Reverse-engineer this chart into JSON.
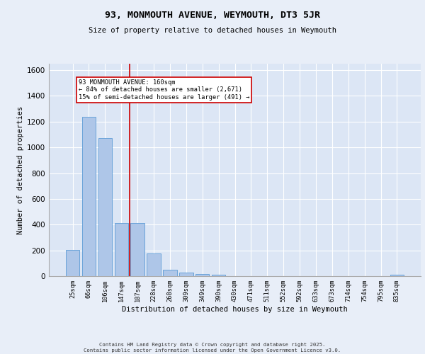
{
  "title": "93, MONMOUTH AVENUE, WEYMOUTH, DT3 5JR",
  "subtitle": "Size of property relative to detached houses in Weymouth",
  "xlabel": "Distribution of detached houses by size in Weymouth",
  "ylabel": "Number of detached properties",
  "categories": [
    "25sqm",
    "66sqm",
    "106sqm",
    "147sqm",
    "187sqm",
    "228sqm",
    "268sqm",
    "309sqm",
    "349sqm",
    "390sqm",
    "430sqm",
    "471sqm",
    "511sqm",
    "552sqm",
    "592sqm",
    "633sqm",
    "673sqm",
    "714sqm",
    "754sqm",
    "795sqm",
    "835sqm"
  ],
  "values": [
    205,
    1235,
    1075,
    415,
    415,
    175,
    50,
    30,
    18,
    12,
    0,
    0,
    0,
    0,
    0,
    0,
    0,
    0,
    0,
    0,
    12
  ],
  "bar_color": "#aec6e8",
  "bar_edge_color": "#5b9bd5",
  "vline_x": 3.5,
  "vline_color": "#cc0000",
  "annotation_text": "93 MONMOUTH AVENUE: 160sqm\n← 84% of detached houses are smaller (2,671)\n15% of semi-detached houses are larger (491) →",
  "annotation_box_color": "#ffffff",
  "annotation_box_edge": "#cc0000",
  "background_color": "#dce6f5",
  "fig_background_color": "#e8eef8",
  "grid_color": "#ffffff",
  "ylim": [
    0,
    1650
  ],
  "yticks": [
    0,
    200,
    400,
    600,
    800,
    1000,
    1200,
    1400,
    1600
  ],
  "footer_line1": "Contains HM Land Registry data © Crown copyright and database right 2025.",
  "footer_line2": "Contains public sector information licensed under the Open Government Licence v3.0."
}
